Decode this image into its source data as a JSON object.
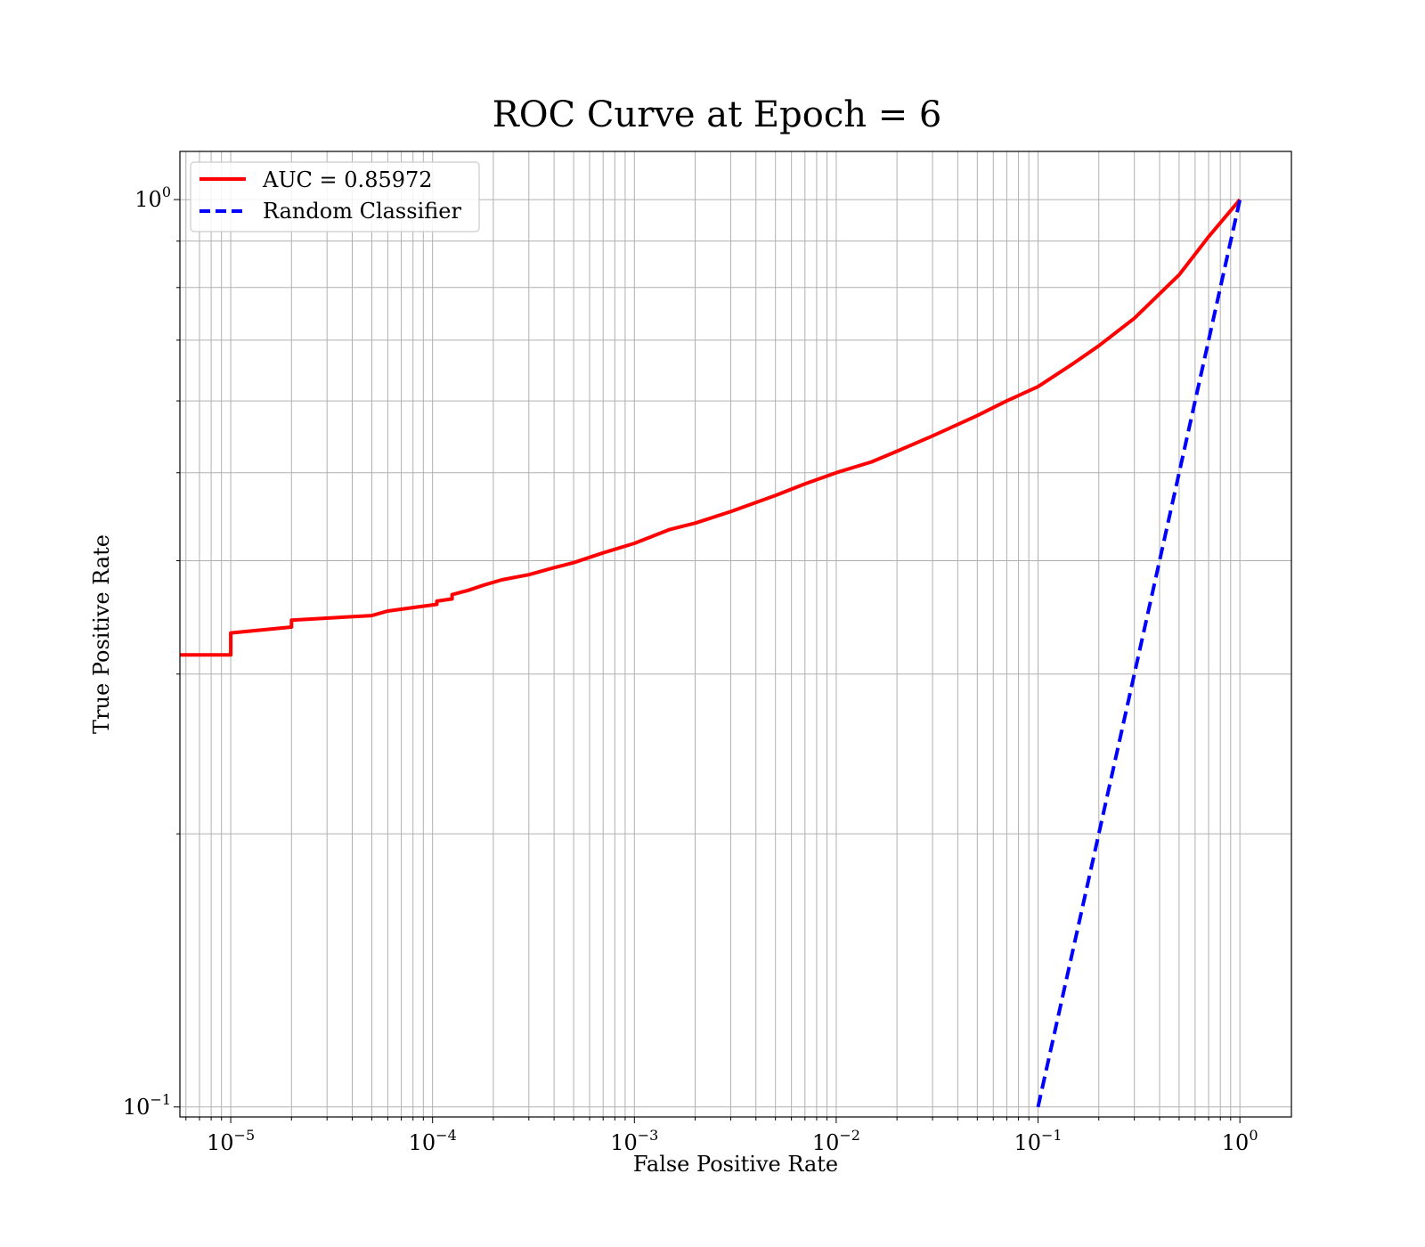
{
  "chart_data": {
    "type": "line",
    "title": "ROC Curve at Epoch = 6",
    "xlabel": "False Positive Rate",
    "ylabel": "True Positive Rate",
    "xscale": "log",
    "yscale": "log",
    "xlim": [
      5.6e-06,
      1.8
    ],
    "ylim": [
      0.0975,
      1.13
    ],
    "grid": true,
    "grid_which": "both",
    "legend_position": "top-left",
    "x_ticks": [
      {
        "base": "10",
        "exp": "−5",
        "value": 1e-05
      },
      {
        "base": "10",
        "exp": "−4",
        "value": 0.0001
      },
      {
        "base": "10",
        "exp": "−3",
        "value": 0.001
      },
      {
        "base": "10",
        "exp": "−2",
        "value": 0.01
      },
      {
        "base": "10",
        "exp": "−1",
        "value": 0.1
      },
      {
        "base": "10",
        "exp": "0",
        "value": 1
      }
    ],
    "y_ticks": [
      {
        "base": "10",
        "exp": "−1",
        "value": 0.1
      },
      {
        "base": "10",
        "exp": "0",
        "value": 1
      }
    ],
    "series": [
      {
        "name": "AUC = 0.85972",
        "color": "#ff0000",
        "style": "solid",
        "x": [
          5.6e-06,
          1e-05,
          1e-05,
          2e-05,
          2e-05,
          5e-05,
          6e-05,
          0.000105,
          0.000105,
          0.000125,
          0.000125,
          0.00015,
          0.00018,
          0.00022,
          0.0003,
          0.0004,
          0.0005,
          0.0007,
          0.001,
          0.0015,
          0.002,
          0.003,
          0.005,
          0.007,
          0.01,
          0.015,
          0.02,
          0.03,
          0.05,
          0.07,
          0.1,
          0.15,
          0.2,
          0.3,
          0.5,
          0.7,
          1.0
        ],
        "y": [
          0.315,
          0.315,
          0.333,
          0.338,
          0.344,
          0.348,
          0.352,
          0.358,
          0.361,
          0.363,
          0.367,
          0.371,
          0.376,
          0.381,
          0.386,
          0.393,
          0.398,
          0.408,
          0.418,
          0.433,
          0.44,
          0.453,
          0.472,
          0.486,
          0.5,
          0.514,
          0.528,
          0.549,
          0.578,
          0.6,
          0.622,
          0.66,
          0.69,
          0.74,
          0.826,
          0.91,
          1.0
        ]
      },
      {
        "name": "Random Classifier",
        "color": "#0000ff",
        "style": "dashed",
        "x": [
          0.1,
          1.0
        ],
        "y": [
          0.1,
          1.0
        ]
      }
    ]
  }
}
